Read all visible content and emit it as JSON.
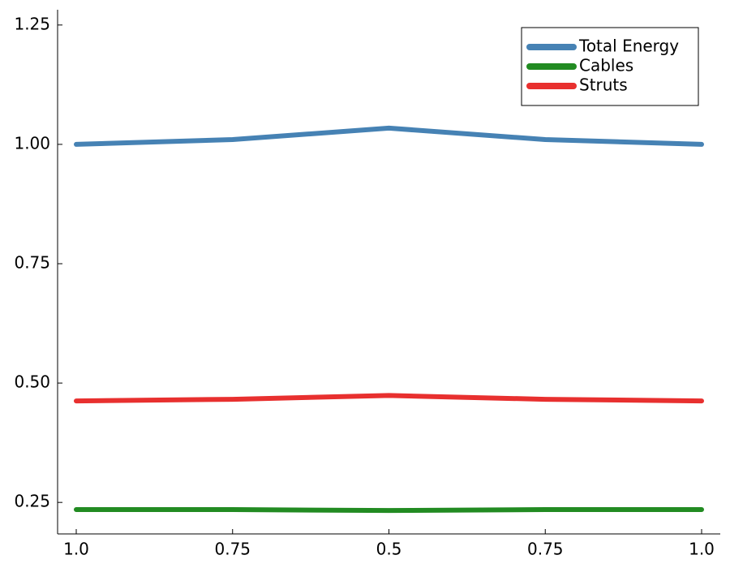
{
  "chart_data": {
    "type": "line",
    "categories": [
      "1.0",
      "0.75",
      "0.5",
      "0.75",
      "1.0"
    ],
    "series": [
      {
        "name": "Total Energy",
        "color": "#4682b4",
        "values": [
          1.0,
          1.01,
          1.034,
          1.01,
          1.0
        ]
      },
      {
        "name": "Cables",
        "color": "#228b22",
        "values": [
          0.235,
          0.235,
          0.233,
          0.235,
          0.235
        ]
      },
      {
        "name": "Struts",
        "color": "#e8302f",
        "values": [
          0.4626,
          0.466,
          0.474,
          0.466,
          0.4626
        ]
      }
    ],
    "ylim": [
      0.184,
      1.282
    ],
    "yticks": [
      0.25,
      {
        "value": 0.5,
        "label": "0.50"
      },
      0.75,
      {
        "value": 1,
        "label": "1.00"
      },
      1.25
    ],
    "grid": false,
    "legend": "top-right"
  }
}
